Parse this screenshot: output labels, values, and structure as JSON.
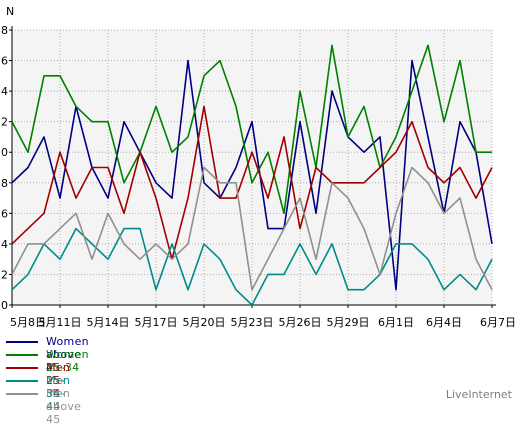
{
  "chart_data": {
    "type": "line",
    "ylabel": "N",
    "ylim": [
      0,
      18
    ],
    "yticks": [
      0,
      2,
      4,
      6,
      8,
      10,
      12,
      14,
      16,
      18
    ],
    "grid": true,
    "x_count": 31,
    "x_tick_labels": [
      {
        "index": 0,
        "label": "5月8日"
      },
      {
        "index": 3,
        "label": "5月11日"
      },
      {
        "index": 6,
        "label": "5月14日"
      },
      {
        "index": 9,
        "label": "5月17日"
      },
      {
        "index": 12,
        "label": "5月20日"
      },
      {
        "index": 15,
        "label": "5月23日"
      },
      {
        "index": 18,
        "label": "5月26日"
      },
      {
        "index": 21,
        "label": "5月29日"
      },
      {
        "index": 24,
        "label": "6月1日"
      },
      {
        "index": 27,
        "label": "6月4日"
      },
      {
        "index": 30,
        "label": "6月7日"
      }
    ],
    "series": [
      {
        "name": "Women above 45",
        "color": "#000080",
        "values": [
          8,
          9,
          11,
          7,
          13,
          9,
          7,
          12,
          10,
          8,
          7,
          16,
          8,
          7,
          9,
          12,
          5,
          5,
          12,
          6,
          14,
          11,
          10,
          11,
          1,
          16,
          11,
          6,
          12,
          10,
          4
        ]
      },
      {
        "name": "Women 25-34",
        "color": "#008000",
        "values": [
          12,
          10,
          15,
          15,
          13,
          12,
          12,
          8,
          10,
          13,
          10,
          11,
          15,
          16,
          13,
          8,
          10,
          6,
          14,
          9,
          17,
          11,
          13,
          9,
          11,
          14,
          17,
          12,
          16,
          10,
          10
        ]
      },
      {
        "name": "Men 25-34",
        "color": "#a00000",
        "values": [
          4,
          5,
          6,
          10,
          7,
          9,
          9,
          6,
          10,
          7,
          3,
          7,
          13,
          7,
          7,
          10,
          7,
          11,
          5,
          9,
          8,
          8,
          8,
          9,
          10,
          12,
          9,
          8,
          9,
          7,
          9
        ]
      },
      {
        "name": "Men 35-44",
        "color": "#008b8b",
        "values": [
          1,
          2,
          4,
          3,
          5,
          4,
          3,
          5,
          5,
          1,
          4,
          1,
          4,
          3,
          1,
          0,
          2,
          2,
          4,
          2,
          4,
          1,
          1,
          2,
          4,
          4,
          3,
          1,
          2,
          1,
          3
        ]
      },
      {
        "name": "Men above 45",
        "color": "#909090",
        "values": [
          2,
          4,
          4,
          5,
          6,
          3,
          6,
          4,
          3,
          4,
          3,
          4,
          9,
          8,
          8,
          1,
          3,
          5,
          7,
          3,
          8,
          7,
          5,
          2,
          6,
          9,
          8,
          6,
          7,
          3,
          1
        ]
      }
    ]
  },
  "watermark": "LiveInternet"
}
